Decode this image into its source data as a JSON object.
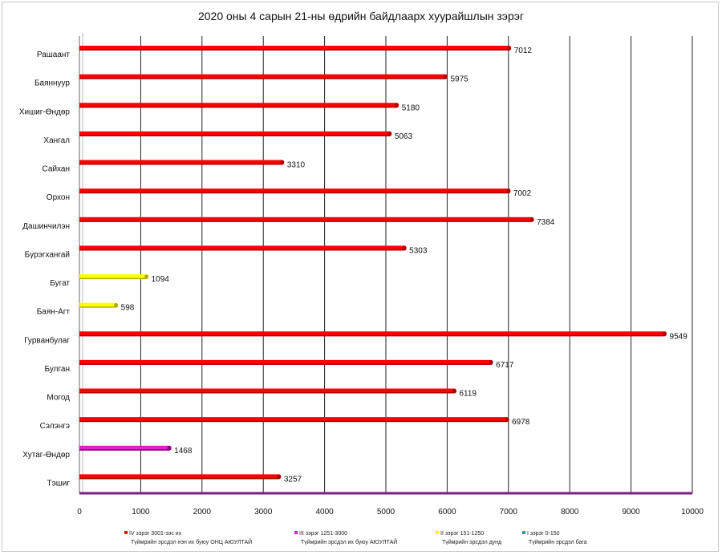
{
  "chart_data": {
    "type": "bar",
    "orientation": "horizontal",
    "title": "2020 оны 4 сарын 21-ны өдрийн байдлаарх хуурайшлын зэрэг",
    "xlim": [
      0,
      10000
    ],
    "x_ticks": [
      0,
      1000,
      2000,
      3000,
      4000,
      5000,
      6000,
      7000,
      8000,
      9000,
      10000
    ],
    "grid": "vertical",
    "categories": [
      "Рашаант",
      "Баяннуур",
      "Хишиг-Өндөр",
      "Хангал",
      "Сайхан",
      "Орхон",
      "Дашинчилэн",
      "Бүрэгхангай",
      "Бугат",
      "Баян-Агт",
      "Гурванбулаг",
      "Булган",
      "Могод",
      "Сэлэнгэ",
      "Хутаг-Өндөр",
      "Тэшиг"
    ],
    "values": [
      7012,
      5975,
      5180,
      5063,
      3310,
      7002,
      7384,
      5303,
      1094,
      598,
      9549,
      6717,
      6119,
      6978,
      1468,
      3257
    ],
    "bar_classes": [
      0,
      0,
      0,
      0,
      0,
      0,
      0,
      0,
      2,
      2,
      0,
      0,
      0,
      0,
      1,
      0
    ],
    "legend_position": "bottom",
    "legend": [
      {
        "line1": "IV зэрэг 3001-ээс их",
        "line2": "Түймрийн эрсдэл нэн их буюу ОНЦ АЮУЛТАЙ",
        "color": "#ff0000"
      },
      {
        "line1": "III зэрэг 1251-3000",
        "line2": "Түймрийн эрсдэл их буюу АЮУЛТАЙ",
        "color": "#e020c8"
      },
      {
        "line1": "II зэрэг 151-1250",
        "line2": "Түймрийн эрсдэл дунд",
        "color": "#ffff00"
      },
      {
        "line1": "I зэрэг 0-150",
        "line2": "Түймрийн эрсдэл бага",
        "color": "#00a0e0"
      }
    ]
  }
}
